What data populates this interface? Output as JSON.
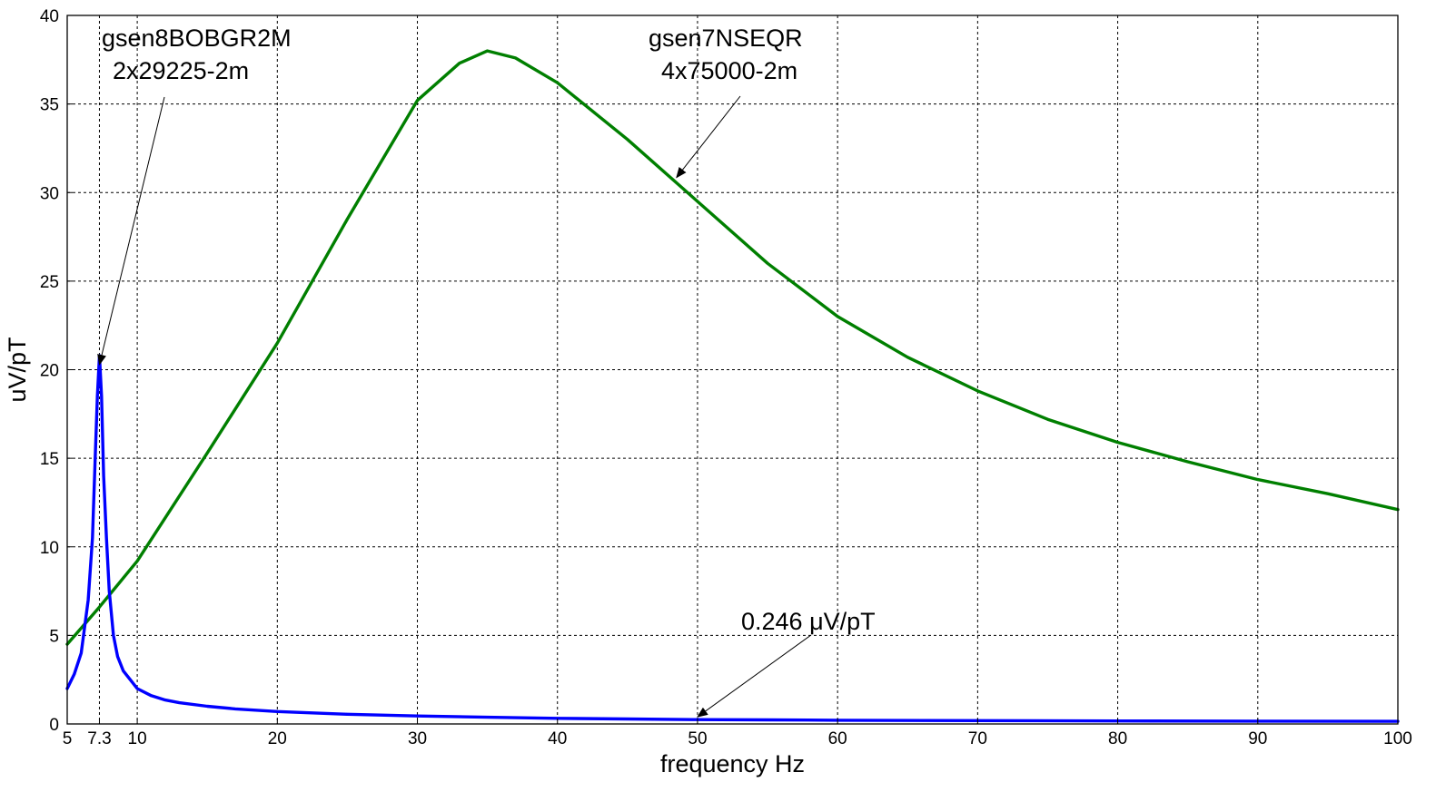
{
  "chart_data": {
    "type": "line",
    "xlabel": "frequency Hz",
    "ylabel": "uV/pT",
    "xlim": [
      5,
      100
    ],
    "ylim": [
      0,
      40
    ],
    "x_ticks": [
      5,
      7.3,
      10,
      20,
      30,
      40,
      50,
      60,
      70,
      80,
      90,
      100
    ],
    "x_tick_labels": [
      "5",
      "7.3",
      "10",
      "20",
      "30",
      "40",
      "50",
      "60",
      "70",
      "80",
      "90",
      "100"
    ],
    "y_ticks": [
      0,
      5,
      10,
      15,
      20,
      25,
      30,
      35,
      40
    ],
    "y_tick_labels": [
      "0",
      "5",
      "10",
      "15",
      "20",
      "25",
      "30",
      "35",
      "40"
    ],
    "grid": true,
    "colors": {
      "blue_series": "#0000ff",
      "green_series": "#007f00",
      "grid": "#000000"
    },
    "series": [
      {
        "color": "#007f00",
        "x": [
          5,
          7.3,
          10,
          15,
          20,
          25,
          30,
          33,
          35,
          37,
          40,
          45,
          50,
          55,
          60,
          65,
          70,
          75,
          80,
          85,
          90,
          95,
          100
        ],
        "y": [
          4.5,
          6.6,
          9.2,
          15.3,
          21.5,
          28.5,
          35.2,
          37.3,
          38.0,
          37.6,
          36.2,
          33.0,
          29.5,
          26.0,
          23.0,
          20.7,
          18.8,
          17.2,
          15.9,
          14.8,
          13.8,
          13.0,
          12.1
        ]
      },
      {
        "color": "#0000ff",
        "x": [
          5,
          5.5,
          6,
          6.5,
          6.8,
          7.0,
          7.15,
          7.3,
          7.45,
          7.6,
          7.8,
          8.0,
          8.3,
          8.6,
          9.0,
          9.5,
          10,
          11,
          12,
          13,
          15,
          17,
          20,
          25,
          30,
          35,
          40,
          45,
          50,
          55,
          60,
          70,
          80,
          90,
          100
        ],
        "y": [
          2.0,
          2.8,
          4.0,
          7.0,
          10.5,
          15.0,
          18.5,
          20.8,
          18.5,
          14.0,
          10.5,
          7.5,
          5.0,
          3.8,
          3.0,
          2.5,
          2.0,
          1.6,
          1.35,
          1.2,
          1.0,
          0.85,
          0.7,
          0.55,
          0.45,
          0.38,
          0.32,
          0.28,
          0.246,
          0.23,
          0.21,
          0.19,
          0.17,
          0.16,
          0.15
        ]
      }
    ],
    "annotations": [
      {
        "lines": [
          "gsen8BOBGR2M",
          "2x29225-2m"
        ],
        "arrow_to": [
          7.3,
          20.8
        ]
      },
      {
        "lines": [
          "gsen7NSEQR",
          "4x75000-2m"
        ],
        "arrow_to": [
          48.5,
          31.0
        ]
      },
      {
        "lines": [
          "0.246 μV/pT"
        ],
        "arrow_to": [
          50,
          0.246
        ]
      }
    ]
  }
}
